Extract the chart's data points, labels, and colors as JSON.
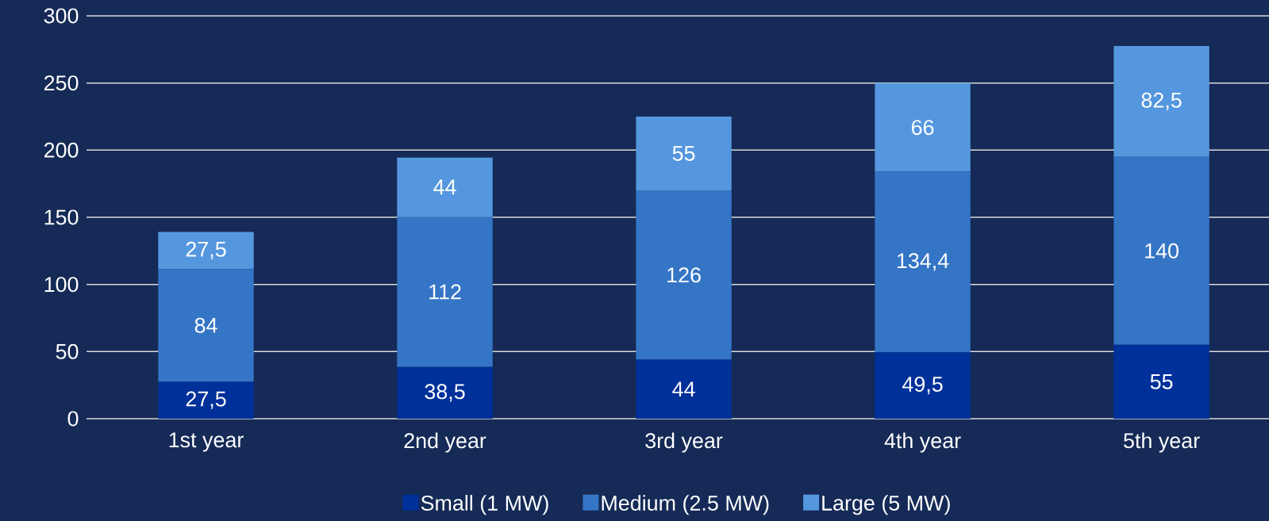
{
  "chart_data": {
    "type": "bar",
    "stacked": true,
    "categories": [
      "1st year",
      "2nd year",
      "3rd year",
      "4th year",
      "5th year"
    ],
    "series": [
      {
        "name": "Small (1 MW)",
        "color": "#00309a",
        "values": [
          27.5,
          38.5,
          44,
          49.5,
          55
        ],
        "value_labels": [
          "27,5",
          "38,5",
          "44",
          "49,5",
          "55"
        ]
      },
      {
        "name": "Medium (2.5 MW)",
        "color": "#3575c6",
        "values": [
          84,
          112,
          126,
          134.4,
          140
        ],
        "value_labels": [
          "84",
          "112",
          "126",
          "134,4",
          "140"
        ]
      },
      {
        "name": "Large (5 MW)",
        "color": "#5597de",
        "values": [
          27.5,
          44,
          55,
          66,
          82.5
        ],
        "value_labels": [
          "27,5",
          "44",
          "55",
          "66",
          "82,5"
        ]
      }
    ],
    "ylim": [
      0,
      300
    ],
    "yticks": [
      0,
      50,
      100,
      150,
      200,
      250,
      300
    ],
    "grid": "y",
    "legend": "bottom"
  }
}
